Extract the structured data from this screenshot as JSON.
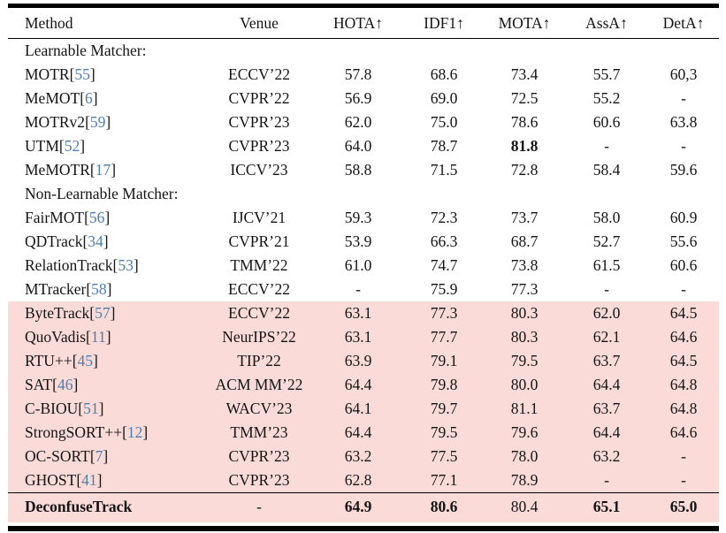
{
  "colors": {
    "highlight_pink": "#fbdbd8",
    "citation_blue": "#4d7eb2",
    "rule_black": "#000000",
    "text": "#141414"
  },
  "table": {
    "columns": [
      {
        "key": "method",
        "label": "Method"
      },
      {
        "key": "venue",
        "label": "Venue"
      },
      {
        "key": "hota",
        "label": "HOTA↑"
      },
      {
        "key": "idf1",
        "label": "IDF1↑"
      },
      {
        "key": "mota",
        "label": "MOTA↑"
      },
      {
        "key": "assa",
        "label": "AssA↑"
      },
      {
        "key": "deta",
        "label": "DetA↑"
      }
    ],
    "rows": [
      {
        "section": true,
        "name": "Learnable Matcher:"
      },
      {
        "name": "MOTR",
        "cite": "55",
        "venue": "ECCV’22",
        "hota": "57.8",
        "idf1": "68.6",
        "mota": "73.4",
        "assa": "55.7",
        "deta": "60,3"
      },
      {
        "name": "MeMOT",
        "cite": "6",
        "venue": "CVPR’22",
        "hota": "56.9",
        "idf1": "69.0",
        "mota": "72.5",
        "assa": "55.2",
        "deta": "-"
      },
      {
        "name": "MOTRv2",
        "cite": "59",
        "venue": "CVPR’23",
        "hota": "62.0",
        "idf1": "75.0",
        "mota": "78.6",
        "assa": "60.6",
        "deta": "63.8"
      },
      {
        "name": "UTM",
        "cite": "52",
        "venue": "CVPR’23",
        "hota": "64.0",
        "idf1": "78.7",
        "mota": "81.8",
        "assa": "-",
        "deta": "-",
        "bold": [
          "mota"
        ]
      },
      {
        "name": "MeMOTR",
        "cite": "17",
        "venue": "ICCV’23",
        "hota": "58.8",
        "idf1": "71.5",
        "mota": "72.8",
        "assa": "58.4",
        "deta": "59.6"
      },
      {
        "section": true,
        "name": "Non-Learnable Matcher:"
      },
      {
        "name": "FairMOT",
        "cite": "56",
        "venue": "IJCV’21",
        "hota": "59.3",
        "idf1": "72.3",
        "mota": "73.7",
        "assa": "58.0",
        "deta": "60.9"
      },
      {
        "name": "QDTrack",
        "cite": "34",
        "venue": "CVPR’21",
        "hota": "53.9",
        "idf1": "66.3",
        "mota": "68.7",
        "assa": "52.7",
        "deta": "55.6"
      },
      {
        "name": "RelationTrack",
        "cite": "53",
        "venue": "TMM’22",
        "hota": "61.0",
        "idf1": "74.7",
        "mota": "73.8",
        "assa": "61.5",
        "deta": "60.6"
      },
      {
        "name": "MTracker",
        "cite": "58",
        "venue": "ECCV’22",
        "hota": "-",
        "idf1": "75.9",
        "mota": "77.3",
        "assa": "-",
        "deta": "-"
      },
      {
        "name": "ByteTrack",
        "cite": "57",
        "venue": "ECCV’22",
        "hota": "63.1",
        "idf1": "77.3",
        "mota": "80.3",
        "assa": "62.0",
        "deta": "64.5",
        "highlight": true
      },
      {
        "name": "QuoVadis",
        "cite": "11",
        "venue": "NeurIPS’22",
        "hota": "63.1",
        "idf1": "77.7",
        "mota": "80.3",
        "assa": "62.1",
        "deta": "64.6",
        "highlight": true
      },
      {
        "name": "RTU++",
        "cite": "45",
        "venue": "TIP’22",
        "hota": "63.9",
        "idf1": "79.1",
        "mota": "79.5",
        "assa": "63.7",
        "deta": "64.5",
        "highlight": true
      },
      {
        "name": "SAT",
        "cite": "46",
        "venue": "ACM MM’22",
        "hota": "64.4",
        "idf1": "79.8",
        "mota": "80.0",
        "assa": "64.4",
        "deta": "64.8",
        "highlight": true
      },
      {
        "name": "C-BIOU",
        "cite": "51",
        "venue": "WACV’23",
        "hota": "64.1",
        "idf1": "79.7",
        "mota": "81.1",
        "assa": "63.7",
        "deta": "64.8",
        "highlight": true
      },
      {
        "name": "StrongSORT++",
        "cite": "12",
        "venue": "TMM’23",
        "hota": "64.4",
        "idf1": "79.5",
        "mota": "79.6",
        "assa": "64.4",
        "deta": "64.6",
        "highlight": true
      },
      {
        "name": "OC-SORT",
        "cite": "7",
        "venue": "CVPR’23",
        "hota": "63.2",
        "idf1": "77.5",
        "mota": "78.0",
        "assa": "63.2",
        "deta": "-",
        "highlight": true
      },
      {
        "name": "GHOST",
        "cite": "41",
        "venue": "CVPR’23",
        "hota": "62.8",
        "idf1": "77.1",
        "mota": "78.9",
        "assa": "-",
        "deta": "-",
        "highlight": true
      },
      {
        "name": "DeconfuseTrack",
        "venue": "-",
        "hota": "64.9",
        "idf1": "80.6",
        "mota": "80.4",
        "assa": "65.1",
        "deta": "65.0",
        "highlight": true,
        "topline": true,
        "lastrow": true,
        "bold": [
          "method",
          "hota",
          "idf1",
          "assa",
          "deta"
        ]
      }
    ]
  }
}
